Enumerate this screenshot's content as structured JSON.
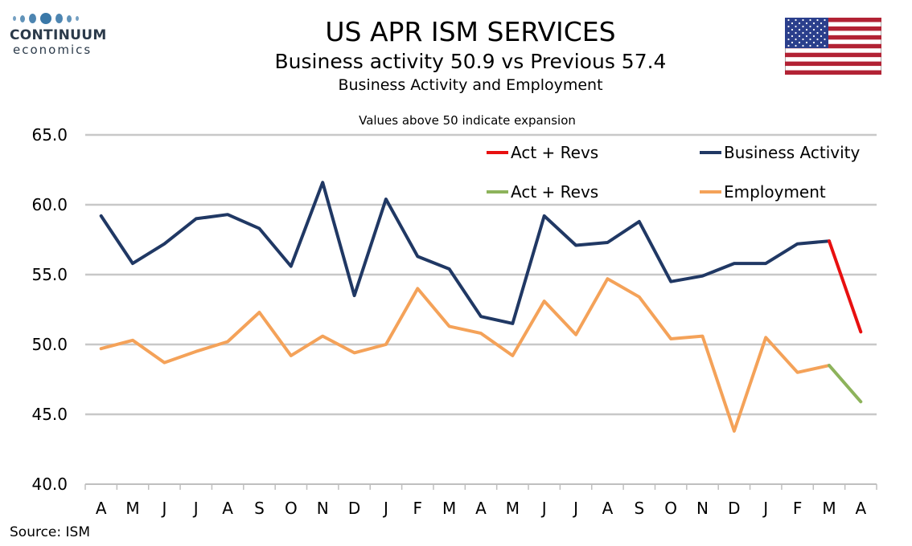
{
  "logo": {
    "name": "CONTINUUM",
    "sub": "economics"
  },
  "title": "US APR ISM SERVICES",
  "subtitle": "Business activity 50.9 vs Previous 57.4",
  "subtitle2": "Business Activity and Employment",
  "source": "Source: ISM",
  "colors": {
    "business_activity": "#203864",
    "employment": "#f4a259",
    "act_revs_red": "#e81010",
    "act_revs_green": "#8db35b",
    "grid": "#c8c8c8"
  },
  "chart_data": {
    "type": "line",
    "annotation": "Values above 50 indicate expansion",
    "categories": [
      "A",
      "M",
      "J",
      "J",
      "A",
      "S",
      "O",
      "N",
      "D",
      "J",
      "F",
      "M",
      "A",
      "M",
      "J",
      "J",
      "A",
      "S",
      "O",
      "N",
      "D",
      "J",
      "F",
      "M",
      "A"
    ],
    "ylim": [
      40,
      65
    ],
    "yticks": [
      "40.0",
      "45.0",
      "50.0",
      "55.0",
      "60.0",
      "65.0"
    ],
    "grid": true,
    "legend_placement": "top-right",
    "legend": [
      {
        "label": "Act + Revs",
        "series": "business_act_revs"
      },
      {
        "label": "Business Activity",
        "series": "business_activity"
      },
      {
        "label": "Act + Revs",
        "series": "employment_act_revs"
      },
      {
        "label": "Employment",
        "series": "employment"
      }
    ],
    "series": [
      {
        "id": "business_activity",
        "name": "Business Activity",
        "color": "#203864",
        "values": [
          59.2,
          55.8,
          57.2,
          59.0,
          59.3,
          58.3,
          55.6,
          61.6,
          53.5,
          60.4,
          56.3,
          55.4,
          52.0,
          51.5,
          59.2,
          57.1,
          57.3,
          58.8,
          54.5,
          54.9,
          55.8,
          55.8,
          57.2,
          57.4,
          null
        ]
      },
      {
        "id": "employment",
        "name": "Employment",
        "color": "#f4a259",
        "values": [
          49.7,
          50.3,
          48.7,
          49.5,
          50.2,
          52.3,
          49.2,
          50.6,
          49.4,
          50.0,
          54.0,
          51.3,
          50.8,
          49.2,
          53.1,
          50.7,
          54.7,
          53.4,
          50.4,
          50.6,
          43.8,
          50.5,
          48.0,
          48.5,
          null
        ]
      },
      {
        "id": "business_act_revs",
        "name": "Act + Revs",
        "color": "#e81010",
        "values": [
          null,
          null,
          null,
          null,
          null,
          null,
          null,
          null,
          null,
          null,
          null,
          null,
          null,
          null,
          null,
          null,
          null,
          null,
          null,
          null,
          null,
          null,
          null,
          57.4,
          50.9
        ]
      },
      {
        "id": "employment_act_revs",
        "name": "Act + Revs",
        "color": "#8db35b",
        "values": [
          null,
          null,
          null,
          null,
          null,
          null,
          null,
          null,
          null,
          null,
          null,
          null,
          null,
          null,
          null,
          null,
          null,
          null,
          null,
          null,
          null,
          null,
          null,
          48.5,
          45.9
        ]
      }
    ]
  }
}
